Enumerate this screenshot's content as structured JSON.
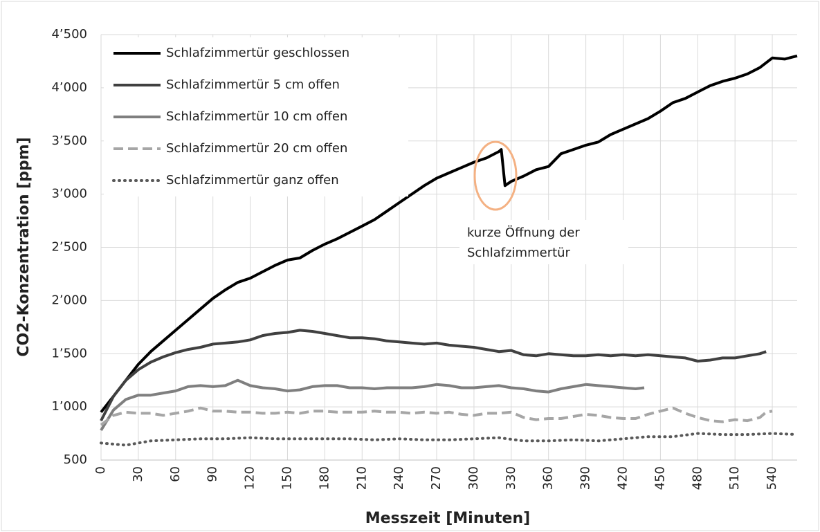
{
  "chart_data": {
    "type": "line",
    "xlabel": "Messzeit [Minuten]",
    "ylabel": "CO2-Konzentration [ppm]",
    "xlim": [
      0,
      560
    ],
    "ylim": [
      500,
      4500
    ],
    "xticks": [
      0,
      30,
      60,
      90,
      120,
      150,
      180,
      210,
      240,
      270,
      300,
      330,
      360,
      390,
      420,
      450,
      480,
      510,
      540
    ],
    "yticks": [
      500,
      {
        "value": 1000,
        "label": "1’000"
      },
      {
        "value": 1500,
        "label": "1’500"
      },
      {
        "value": 2000,
        "label": "2’000"
      },
      {
        "value": 2500,
        "label": "2’500"
      },
      {
        "value": 3000,
        "label": "3’000"
      },
      {
        "value": 3500,
        "label": "3’500"
      },
      {
        "value": 4000,
        "label": "4’000"
      },
      {
        "value": 4500,
        "label": "4’500"
      }
    ],
    "grid": true,
    "legend": "upper left",
    "annotation": [
      "kurze Öffnung der",
      "Schlafzimmertür"
    ],
    "series": [
      {
        "name": "Schlafzimmertür geschlossen",
        "color": "#000000",
        "dash": "solid",
        "x": [
          0,
          10,
          20,
          30,
          40,
          50,
          60,
          70,
          80,
          90,
          100,
          110,
          120,
          130,
          140,
          150,
          160,
          170,
          180,
          190,
          200,
          210,
          220,
          230,
          240,
          250,
          260,
          270,
          280,
          290,
          300,
          310,
          320,
          322,
          325,
          330,
          340,
          350,
          360,
          370,
          380,
          390,
          400,
          410,
          420,
          430,
          440,
          450,
          460,
          470,
          480,
          490,
          500,
          510,
          520,
          530,
          540,
          550,
          560
        ],
        "values": [
          950,
          1100,
          1250,
          1400,
          1520,
          1620,
          1720,
          1820,
          1920,
          2020,
          2100,
          2170,
          2210,
          2270,
          2330,
          2380,
          2400,
          2470,
          2530,
          2580,
          2640,
          2700,
          2760,
          2840,
          2920,
          3000,
          3080,
          3150,
          3200,
          3250,
          3300,
          3340,
          3400,
          3420,
          3080,
          3120,
          3170,
          3230,
          3260,
          3380,
          3420,
          3460,
          3490,
          3560,
          3610,
          3660,
          3710,
          3780,
          3860,
          3900,
          3960,
          4020,
          4060,
          4090,
          4130,
          4190,
          4280,
          4270,
          4300
        ]
      },
      {
        "name": "Schlafzimmertür 5 cm offen",
        "color": "#404040",
        "dash": "solid",
        "x": [
          0,
          10,
          20,
          30,
          40,
          50,
          60,
          70,
          80,
          90,
          100,
          110,
          120,
          130,
          140,
          150,
          160,
          170,
          180,
          190,
          200,
          210,
          220,
          230,
          240,
          250,
          260,
          270,
          280,
          290,
          300,
          310,
          320,
          330,
          340,
          350,
          360,
          370,
          380,
          390,
          400,
          410,
          420,
          430,
          440,
          450,
          460,
          470,
          480,
          490,
          500,
          510,
          520,
          530,
          535
        ],
        "values": [
          870,
          1100,
          1250,
          1350,
          1420,
          1470,
          1510,
          1540,
          1560,
          1590,
          1600,
          1610,
          1630,
          1670,
          1690,
          1700,
          1720,
          1710,
          1690,
          1670,
          1650,
          1650,
          1640,
          1620,
          1610,
          1600,
          1590,
          1600,
          1580,
          1570,
          1560,
          1540,
          1520,
          1530,
          1490,
          1480,
          1500,
          1490,
          1480,
          1480,
          1490,
          1480,
          1490,
          1480,
          1490,
          1480,
          1470,
          1460,
          1430,
          1440,
          1460,
          1460,
          1480,
          1500,
          1520
        ]
      },
      {
        "name": "Schlafzimmertür 10 cm offen",
        "color": "#7f7f7f",
        "dash": "solid",
        "x": [
          0,
          10,
          20,
          30,
          40,
          50,
          60,
          70,
          80,
          90,
          100,
          110,
          120,
          130,
          140,
          150,
          160,
          170,
          180,
          190,
          200,
          210,
          220,
          230,
          240,
          250,
          260,
          270,
          280,
          290,
          300,
          310,
          320,
          330,
          340,
          350,
          360,
          370,
          380,
          390,
          400,
          410,
          420,
          430,
          437
        ],
        "values": [
          780,
          970,
          1070,
          1110,
          1110,
          1130,
          1150,
          1190,
          1200,
          1190,
          1200,
          1250,
          1200,
          1180,
          1170,
          1150,
          1160,
          1190,
          1200,
          1200,
          1180,
          1180,
          1170,
          1180,
          1180,
          1180,
          1190,
          1210,
          1200,
          1180,
          1180,
          1190,
          1200,
          1180,
          1170,
          1150,
          1140,
          1170,
          1190,
          1210,
          1200,
          1190,
          1180,
          1170,
          1180
        ]
      },
      {
        "name": "Schlafzimmertür 20 cm offen",
        "color": "#a6a6a6",
        "dash": "dashed",
        "x": [
          0,
          10,
          20,
          30,
          40,
          50,
          60,
          70,
          80,
          90,
          100,
          110,
          120,
          130,
          140,
          150,
          160,
          170,
          180,
          190,
          200,
          210,
          220,
          230,
          240,
          250,
          260,
          270,
          280,
          290,
          300,
          310,
          320,
          330,
          340,
          350,
          360,
          370,
          380,
          390,
          400,
          410,
          420,
          430,
          440,
          450,
          460,
          470,
          480,
          490,
          500,
          510,
          520,
          530,
          535,
          540
        ],
        "values": [
          830,
          920,
          950,
          940,
          940,
          920,
          940,
          960,
          990,
          960,
          960,
          950,
          950,
          940,
          940,
          950,
          940,
          960,
          960,
          950,
          950,
          950,
          960,
          950,
          950,
          940,
          950,
          940,
          950,
          930,
          920,
          940,
          940,
          950,
          900,
          880,
          890,
          890,
          910,
          930,
          920,
          900,
          890,
          890,
          930,
          960,
          990,
          940,
          900,
          870,
          860,
          880,
          870,
          900,
          950,
          960
        ]
      },
      {
        "name": "Schlafzimmertür ganz offen",
        "color": "#595959",
        "dash": "dotted",
        "x": [
          0,
          20,
          40,
          60,
          80,
          100,
          120,
          140,
          160,
          180,
          200,
          220,
          240,
          260,
          280,
          300,
          320,
          340,
          360,
          380,
          400,
          420,
          440,
          460,
          480,
          500,
          520,
          540,
          560
        ],
        "values": [
          660,
          640,
          680,
          690,
          700,
          700,
          710,
          700,
          700,
          700,
          700,
          690,
          700,
          690,
          690,
          700,
          710,
          680,
          680,
          690,
          680,
          700,
          720,
          720,
          750,
          740,
          740,
          750,
          740
        ]
      }
    ]
  }
}
